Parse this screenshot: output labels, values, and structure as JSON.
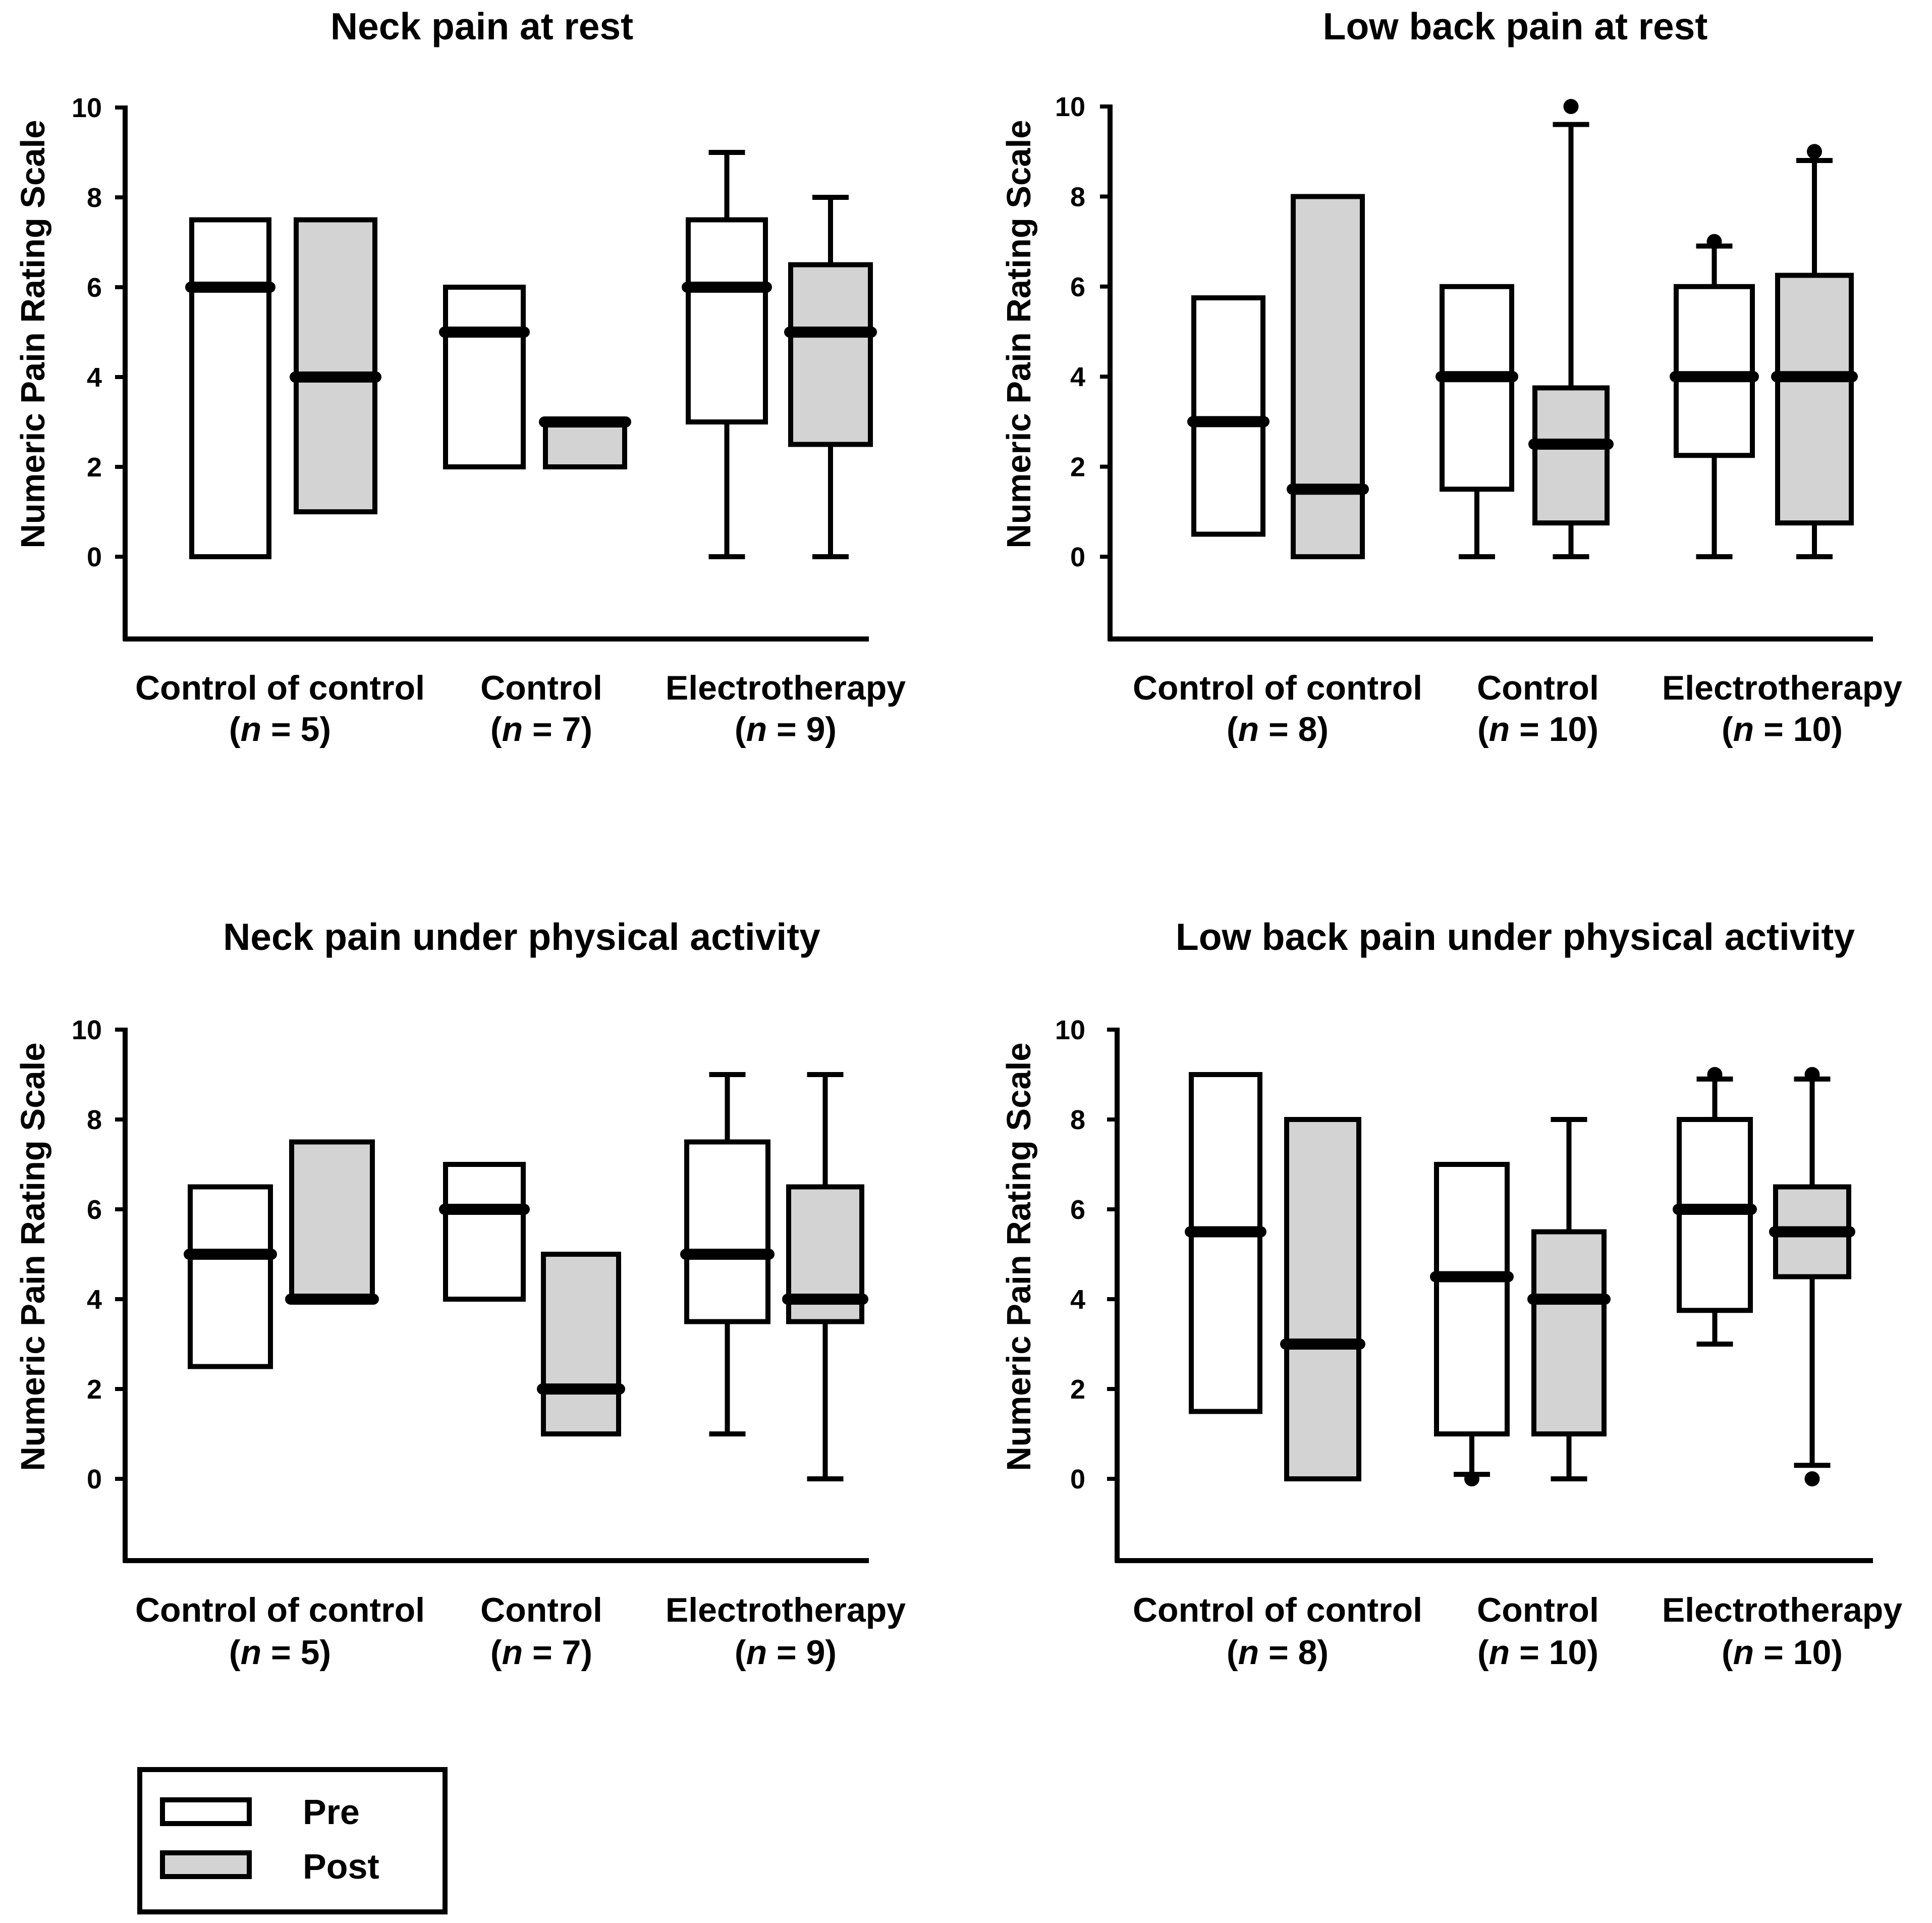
{
  "legend": {
    "pre_label": "Pre",
    "post_label": "Post",
    "pre_fill": "#ffffff",
    "post_fill": "#d3d3d3"
  },
  "colors": {
    "stroke": "#000000",
    "pre_fill": "#ffffff",
    "post_fill": "#d3d3d3",
    "background": "#ffffff"
  },
  "chart_data": [
    {
      "type": "box",
      "title": "Neck pain at rest",
      "ylabel": "Numeric Pain Rating Scale",
      "ylim": [
        -1.8,
        10
      ],
      "yticks": [
        "0",
        "2",
        "4",
        "6",
        "8",
        "10"
      ],
      "categories": [
        {
          "name": "Control of control",
          "n_prefix": "(",
          "n_italic": "n",
          "n_suffix": " = 5)"
        },
        {
          "name": "Control",
          "n_prefix": "(",
          "n_italic": "n",
          "n_suffix": " = 7)"
        },
        {
          "name": "Electrotherapy",
          "n_prefix": "(",
          "n_italic": "n",
          "n_suffix": " = 9)"
        }
      ],
      "series": [
        {
          "name": "Pre",
          "boxes": [
            {
              "q1": 0,
              "median": 6,
              "q3": 7.5,
              "whisker_low": null,
              "whisker_high": null,
              "outliers": []
            },
            {
              "q1": 2,
              "median": 5,
              "q3": 6,
              "whisker_low": null,
              "whisker_high": null,
              "outliers": []
            },
            {
              "q1": 3,
              "median": 6,
              "q3": 7.5,
              "whisker_low": 0,
              "whisker_high": 9,
              "outliers": []
            }
          ]
        },
        {
          "name": "Post",
          "boxes": [
            {
              "q1": 1,
              "median": 4,
              "q3": 7.5,
              "whisker_low": null,
              "whisker_high": null,
              "outliers": []
            },
            {
              "q1": 2,
              "median": 3,
              "q3": 3,
              "whisker_low": null,
              "whisker_high": null,
              "outliers": []
            },
            {
              "q1": 2.5,
              "median": 5,
              "q3": 6.5,
              "whisker_low": 0,
              "whisker_high": 8,
              "outliers": []
            }
          ]
        }
      ]
    },
    {
      "type": "box",
      "title": "Low back pain at rest",
      "ylabel": "Numeric Pain Rating Scale",
      "ylim": [
        -1.8,
        10
      ],
      "yticks": [
        "0",
        "2",
        "4",
        "6",
        "8",
        "10"
      ],
      "categories": [
        {
          "name": "Control of control",
          "n_prefix": "(",
          "n_italic": "n",
          "n_suffix": " = 8)"
        },
        {
          "name": "Control",
          "n_prefix": "(",
          "n_italic": "n",
          "n_suffix": " = 10)"
        },
        {
          "name": "Electrotherapy",
          "n_prefix": "(",
          "n_italic": "n",
          "n_suffix": " = 10)"
        }
      ],
      "series": [
        {
          "name": "Pre",
          "boxes": [
            {
              "q1": 0.5,
              "median": 3,
              "q3": 5.75,
              "whisker_low": null,
              "whisker_high": null,
              "outliers": []
            },
            {
              "q1": 1.5,
              "median": 4,
              "q3": 6,
              "whisker_low": 0,
              "whisker_high": null,
              "outliers": []
            },
            {
              "q1": 2.25,
              "median": 4,
              "q3": 6,
              "whisker_low": 0,
              "whisker_high": 6.9,
              "outliers": [
                7
              ]
            }
          ]
        },
        {
          "name": "Post",
          "boxes": [
            {
              "q1": 0,
              "median": 1.5,
              "q3": 8,
              "whisker_low": null,
              "whisker_high": null,
              "outliers": []
            },
            {
              "q1": 0.75,
              "median": 2.5,
              "q3": 3.75,
              "whisker_low": 0,
              "whisker_high": 9.6,
              "outliers": [
                10
              ]
            },
            {
              "q1": 0.75,
              "median": 4,
              "q3": 6.25,
              "whisker_low": 0,
              "whisker_high": 8.8,
              "outliers": [
                9
              ]
            }
          ]
        }
      ]
    },
    {
      "type": "box",
      "title": "Neck pain under physical activity",
      "ylabel": "Numeric Pain Rating Scale",
      "ylim": [
        -1.8,
        10
      ],
      "yticks": [
        "0",
        "2",
        "4",
        "6",
        "8",
        "10"
      ],
      "categories": [
        {
          "name": "Control of control",
          "n_prefix": "(",
          "n_italic": "n",
          "n_suffix": " = 5)"
        },
        {
          "name": "Control",
          "n_prefix": "(",
          "n_italic": "n",
          "n_suffix": " = 7)"
        },
        {
          "name": "Electrotherapy",
          "n_prefix": "(",
          "n_italic": "n",
          "n_suffix": " = 9)"
        }
      ],
      "series": [
        {
          "name": "Pre",
          "boxes": [
            {
              "q1": 2.5,
              "median": 5,
              "q3": 6.5,
              "whisker_low": null,
              "whisker_high": null,
              "outliers": []
            },
            {
              "q1": 4,
              "median": 6,
              "q3": 7,
              "whisker_low": null,
              "whisker_high": null,
              "outliers": []
            },
            {
              "q1": 3.5,
              "median": 5,
              "q3": 7.5,
              "whisker_low": 1,
              "whisker_high": 9,
              "outliers": []
            }
          ]
        },
        {
          "name": "Post",
          "boxes": [
            {
              "q1": 4,
              "median": 4,
              "q3": 7.5,
              "whisker_low": null,
              "whisker_high": null,
              "outliers": []
            },
            {
              "q1": 1,
              "median": 2,
              "q3": 5,
              "whisker_low": null,
              "whisker_high": null,
              "outliers": []
            },
            {
              "q1": 3.5,
              "median": 4,
              "q3": 6.5,
              "whisker_low": 0,
              "whisker_high": 9,
              "outliers": []
            }
          ]
        }
      ]
    },
    {
      "type": "box",
      "title": "Low back pain under physical activity",
      "ylabel": "Numeric Pain Rating Scale",
      "ylim": [
        -1.8,
        10
      ],
      "yticks": [
        "0",
        "2",
        "4",
        "6",
        "8",
        "10"
      ],
      "categories": [
        {
          "name": "Control of control",
          "n_prefix": "(",
          "n_italic": "n",
          "n_suffix": " = 8)"
        },
        {
          "name": "Control",
          "n_prefix": "(",
          "n_italic": "n",
          "n_suffix": " = 10)"
        },
        {
          "name": "Electrotherapy",
          "n_prefix": "(",
          "n_italic": "n",
          "n_suffix": " = 10)"
        }
      ],
      "series": [
        {
          "name": "Pre",
          "boxes": [
            {
              "q1": 1.5,
              "median": 5.5,
              "q3": 9,
              "whisker_low": null,
              "whisker_high": null,
              "outliers": []
            },
            {
              "q1": 1,
              "median": 4.5,
              "q3": 7,
              "whisker_low": 0.1,
              "whisker_high": null,
              "outliers": [
                0
              ]
            },
            {
              "q1": 3.75,
              "median": 6,
              "q3": 8,
              "whisker_low": 3,
              "whisker_high": 8.9,
              "outliers": [
                9
              ]
            }
          ]
        },
        {
          "name": "Post",
          "boxes": [
            {
              "q1": 0,
              "median": 3,
              "q3": 8,
              "whisker_low": null,
              "whisker_high": null,
              "outliers": []
            },
            {
              "q1": 1,
              "median": 4,
              "q3": 5.5,
              "whisker_low": 0,
              "whisker_high": 8,
              "outliers": []
            },
            {
              "q1": 4.5,
              "median": 5.5,
              "q3": 6.5,
              "whisker_low": 0.3,
              "whisker_high": 8.9,
              "outliers": [
                0,
                9
              ]
            }
          ]
        }
      ]
    }
  ]
}
